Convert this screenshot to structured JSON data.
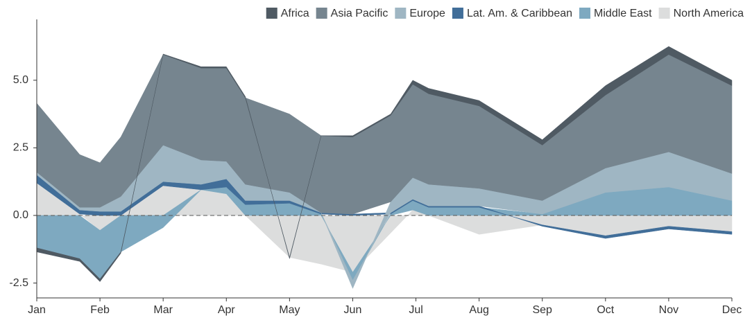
{
  "chart_data": {
    "type": "stacked_area",
    "x": [
      0,
      0.68,
      1,
      1.33,
      2,
      2.6,
      3,
      3.3,
      4,
      4.5,
      5,
      5.6,
      5.95,
      6.2,
      7,
      8,
      9,
      10,
      11
    ],
    "xlim": [
      0,
      11
    ],
    "xticks": [
      {
        "value": 0,
        "label": "Jan"
      },
      {
        "value": 1,
        "label": "Feb"
      },
      {
        "value": 2,
        "label": "Mar"
      },
      {
        "value": 3,
        "label": "Apr"
      },
      {
        "value": 4,
        "label": "May"
      },
      {
        "value": 5,
        "label": "Jun"
      },
      {
        "value": 6,
        "label": "Jul"
      },
      {
        "value": 7,
        "label": "Aug"
      },
      {
        "value": 8,
        "label": "Sep"
      },
      {
        "value": 9,
        "label": "Oct"
      },
      {
        "value": 10,
        "label": "Nov"
      },
      {
        "value": 11,
        "label": "Dec"
      }
    ],
    "ylim": [
      -3.05,
      7.25
    ],
    "yticks": [
      -2.5,
      {
        "value": 0,
        "label": "0.0"
      },
      2.5,
      {
        "value": 5,
        "label": "5.0"
      }
    ],
    "series": [
      {
        "name": "Africa",
        "color": "#4f5a63",
        "values": [
          -0.15,
          -0.1,
          -0.1,
          -0.05,
          0.02,
          0.05,
          0.05,
          0.05,
          -0.05,
          0,
          0.05,
          0.05,
          0.15,
          0.2,
          0.2,
          0.2,
          0.35,
          0.3,
          0.2
        ]
      },
      {
        "name": "Asia Pacific",
        "color": "#76858f",
        "values": [
          2.55,
          1.95,
          1.65,
          2.2,
          3.35,
          3.4,
          3.45,
          3.2,
          2.9,
          2.85,
          2.85,
          3.2,
          3.45,
          3.35,
          3.05,
          2.05,
          2.7,
          3.6,
          3.25
        ]
      },
      {
        "name": "Europe",
        "color": "#9fb6c3",
        "values": [
          0.1,
          0.1,
          0.15,
          0.55,
          1.35,
          0.9,
          0.65,
          0.6,
          0.3,
          0,
          -0.3,
          0.4,
          0.8,
          0.8,
          0.65,
          0.5,
          0.9,
          1.3,
          1.0
        ]
      },
      {
        "name": "Lat. Am. & Caribbean",
        "color": "#416e99",
        "values": [
          0.3,
          0.15,
          0.15,
          0.15,
          0.15,
          0.2,
          0.3,
          0.15,
          0.1,
          0.05,
          0.05,
          0.05,
          0.05,
          0.05,
          0.05,
          -0.05,
          -0.1,
          -0.1,
          -0.1
        ]
      },
      {
        "name": "Middle East",
        "color": "#7ea9c0",
        "values": [
          -1.2,
          -1.6,
          -1.8,
          -1.35,
          -0.45,
          0,
          0.25,
          0.4,
          0.45,
          0.05,
          -0.3,
          0.05,
          0.35,
          0.3,
          0.3,
          0.05,
          0.85,
          1.05,
          0.55
        ]
      },
      {
        "name": "North America",
        "color": "#dcdddd",
        "values": [
          1.2,
          0.05,
          -0.55,
          0,
          1.1,
          0.95,
          0.8,
          0,
          -1.55,
          -1.8,
          -2.1,
          -0.65,
          0.2,
          0,
          -0.7,
          -0.35,
          -0.75,
          -0.4,
          -0.6
        ]
      }
    ]
  }
}
